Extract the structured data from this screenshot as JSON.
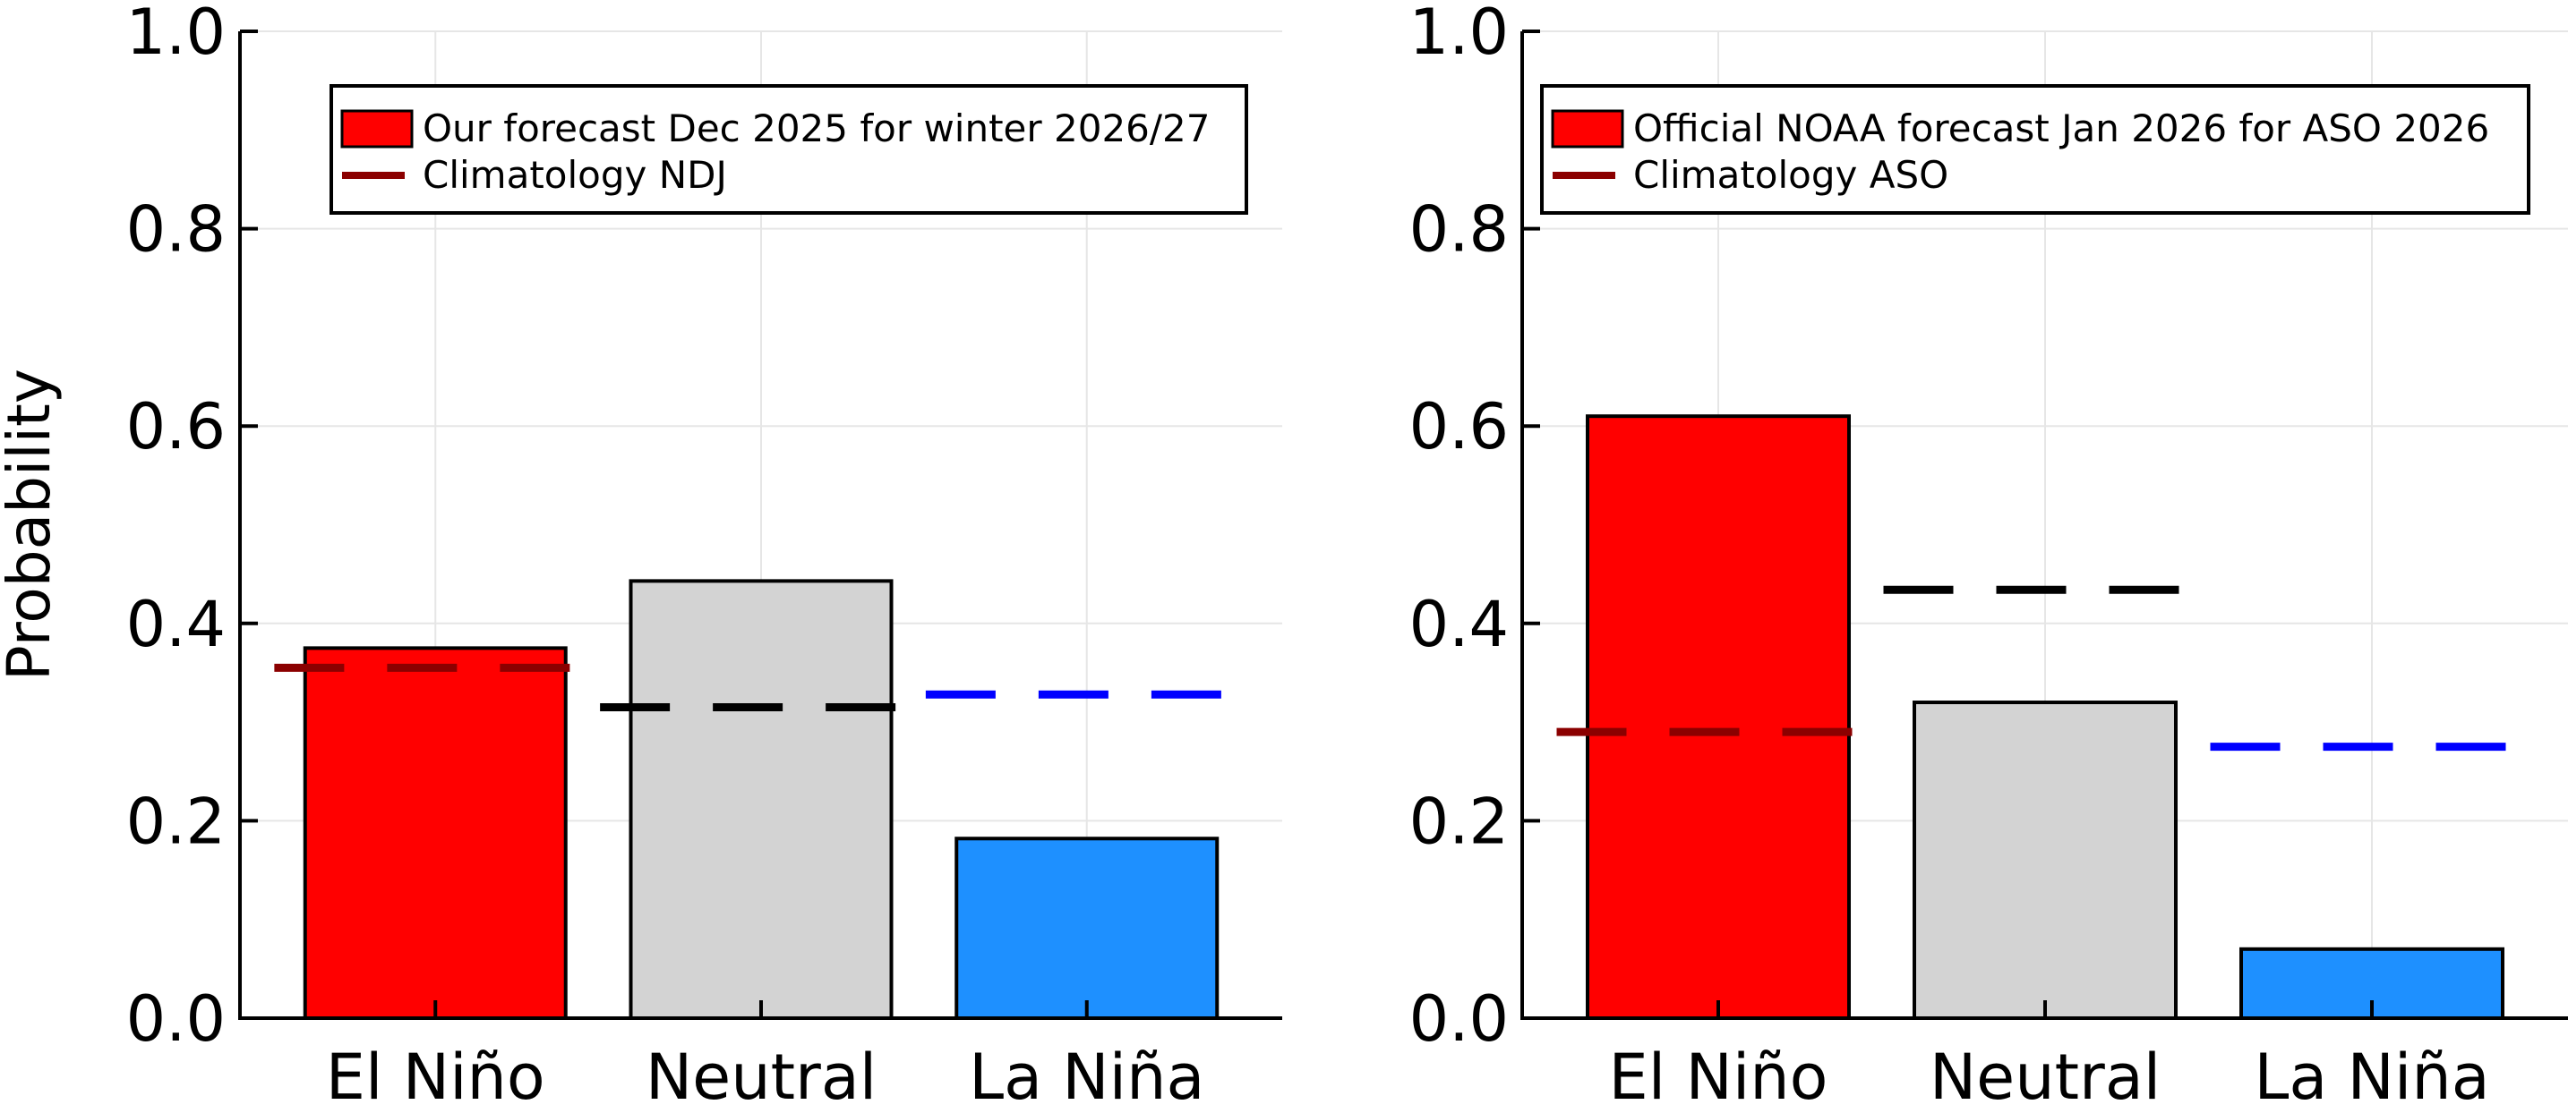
{
  "chart_data": [
    {
      "type": "bar",
      "ylabel": "Probability",
      "categories": [
        "El Niño",
        "Neutral",
        "La Niña"
      ],
      "values": [
        0.375,
        0.443,
        0.182
      ],
      "bar_colors": [
        "#ff0000",
        "#d3d3d3",
        "#1e90ff"
      ],
      "climatology": [
        0.355,
        0.315,
        0.328
      ],
      "climatology_colors": [
        "#8b0000",
        "#000000",
        "#0000ff"
      ],
      "ylim": [
        0,
        1
      ],
      "yticks": [
        "0.0",
        "0.2",
        "0.4",
        "0.6",
        "0.8",
        "1.0"
      ],
      "grid": true,
      "legend": {
        "placement": "top-right",
        "entries": [
          {
            "label": "Our forecast Dec 2025 for winter 2026/27",
            "kind": "patch",
            "color": "#ff0000"
          },
          {
            "label": "Climatology NDJ",
            "kind": "line",
            "color": "#8b0000"
          }
        ]
      }
    },
    {
      "type": "bar",
      "ylabel": "",
      "categories": [
        "El Niño",
        "Neutral",
        "La Niña"
      ],
      "values": [
        0.61,
        0.32,
        0.07
      ],
      "bar_colors": [
        "#ff0000",
        "#d3d3d3",
        "#1e90ff"
      ],
      "climatology": [
        0.29,
        0.434,
        0.275
      ],
      "climatology_colors": [
        "#8b0000",
        "#000000",
        "#0000ff"
      ],
      "ylim": [
        0,
        1
      ],
      "yticks": [
        "0.0",
        "0.2",
        "0.4",
        "0.6",
        "0.8",
        "1.0"
      ],
      "grid": true,
      "legend": {
        "placement": "top-right",
        "entries": [
          {
            "label": "Official NOAA forecast Jan 2026 for ASO 2026",
            "kind": "patch",
            "color": "#ff0000"
          },
          {
            "label": "Climatology ASO",
            "kind": "line",
            "color": "#8b0000"
          }
        ]
      }
    }
  ]
}
